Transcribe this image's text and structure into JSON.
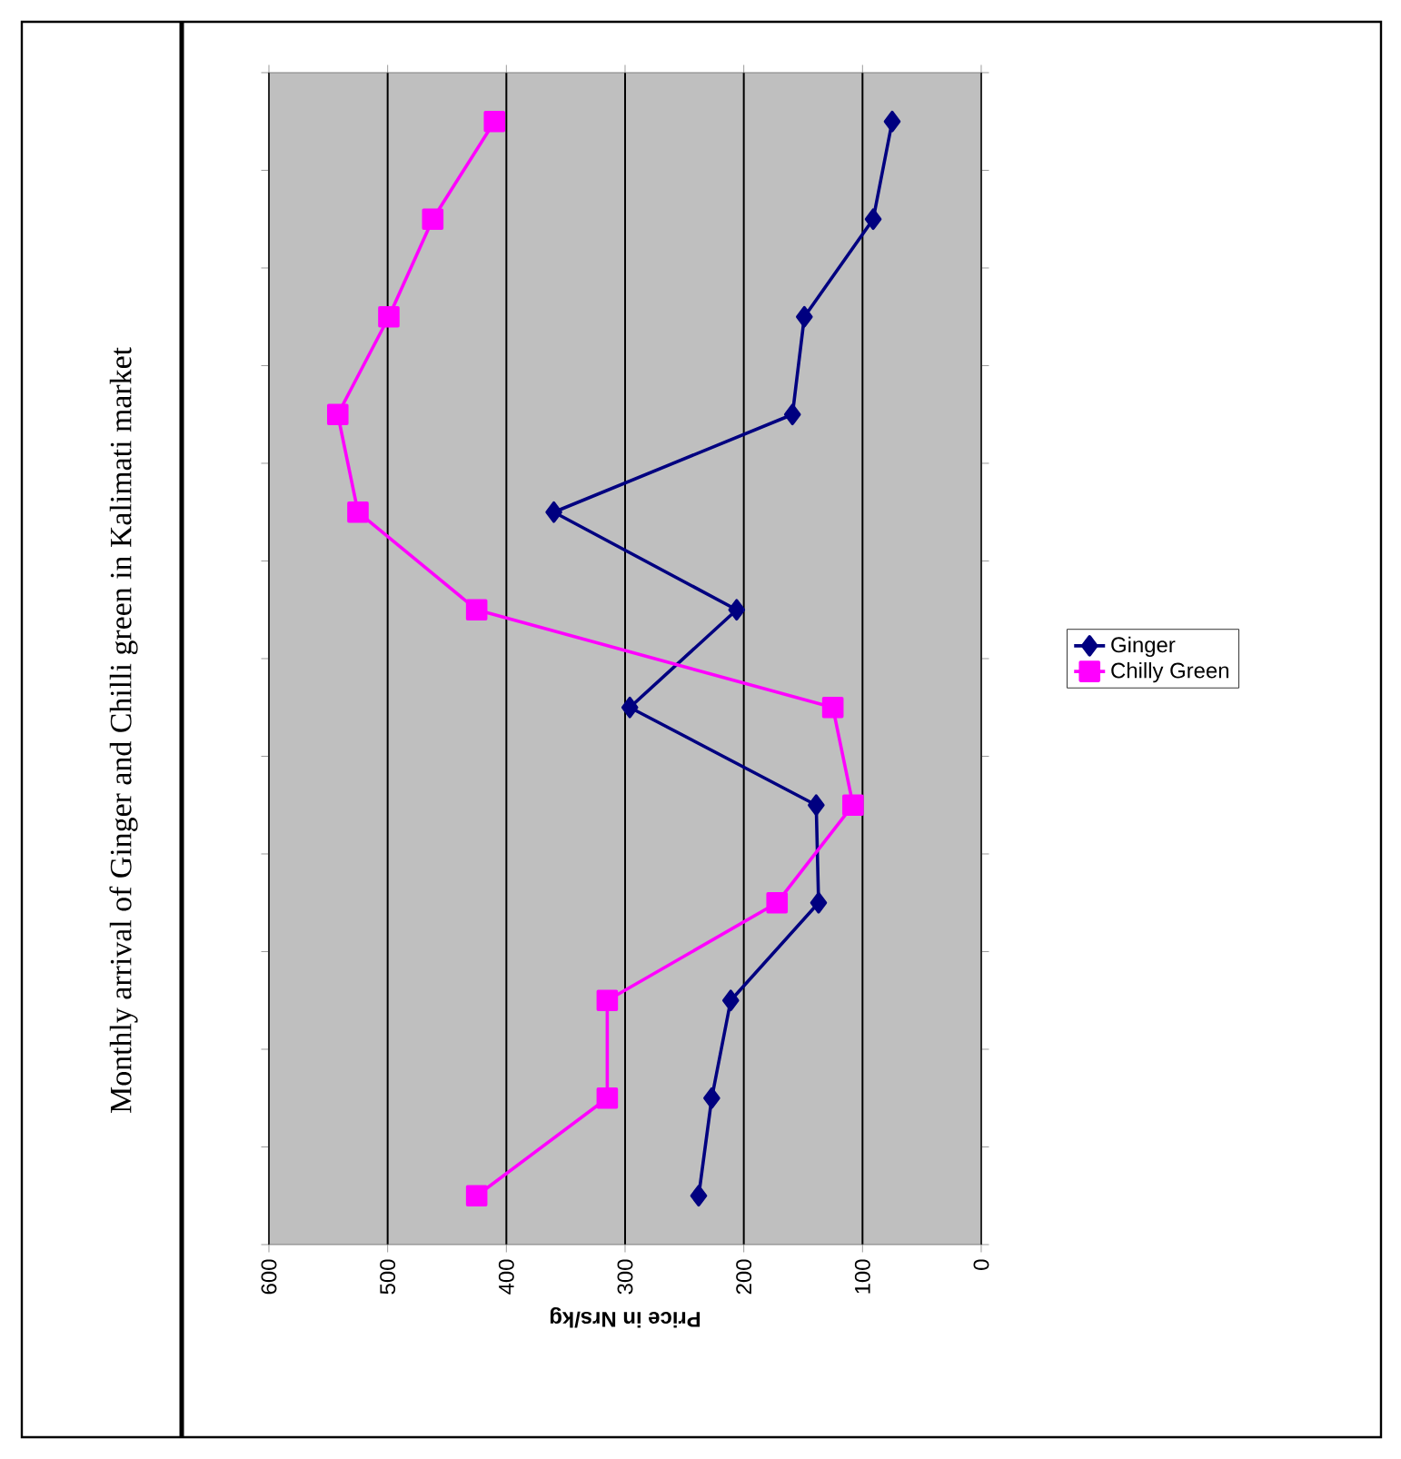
{
  "chart_data": {
    "type": "line",
    "orientation": "horizontal",
    "title": "Monthly arrival of Ginger and Chilli green in Kalimati market",
    "xlabel": "Price in Nrs/kg",
    "categories": [
      null,
      null,
      null,
      null,
      null,
      null,
      null,
      null,
      null,
      null,
      null,
      null
    ],
    "series": [
      {
        "name": "Ginger",
        "color": "#000080",
        "marker": "diamond",
        "values": [
          75,
          91,
          149,
          159,
          360,
          206,
          296,
          139,
          137,
          211,
          227,
          238
        ]
      },
      {
        "name": "Chilly Green",
        "color": "#ff00ff",
        "marker": "square",
        "values": [
          410,
          462,
          499,
          542,
          525,
          425,
          125,
          108,
          172,
          315,
          315,
          425
        ]
      }
    ],
    "xlim": [
      600,
      0
    ],
    "xticks": [
      0,
      100,
      200,
      300,
      400,
      500,
      600
    ],
    "grid": "x",
    "legend": "right"
  }
}
